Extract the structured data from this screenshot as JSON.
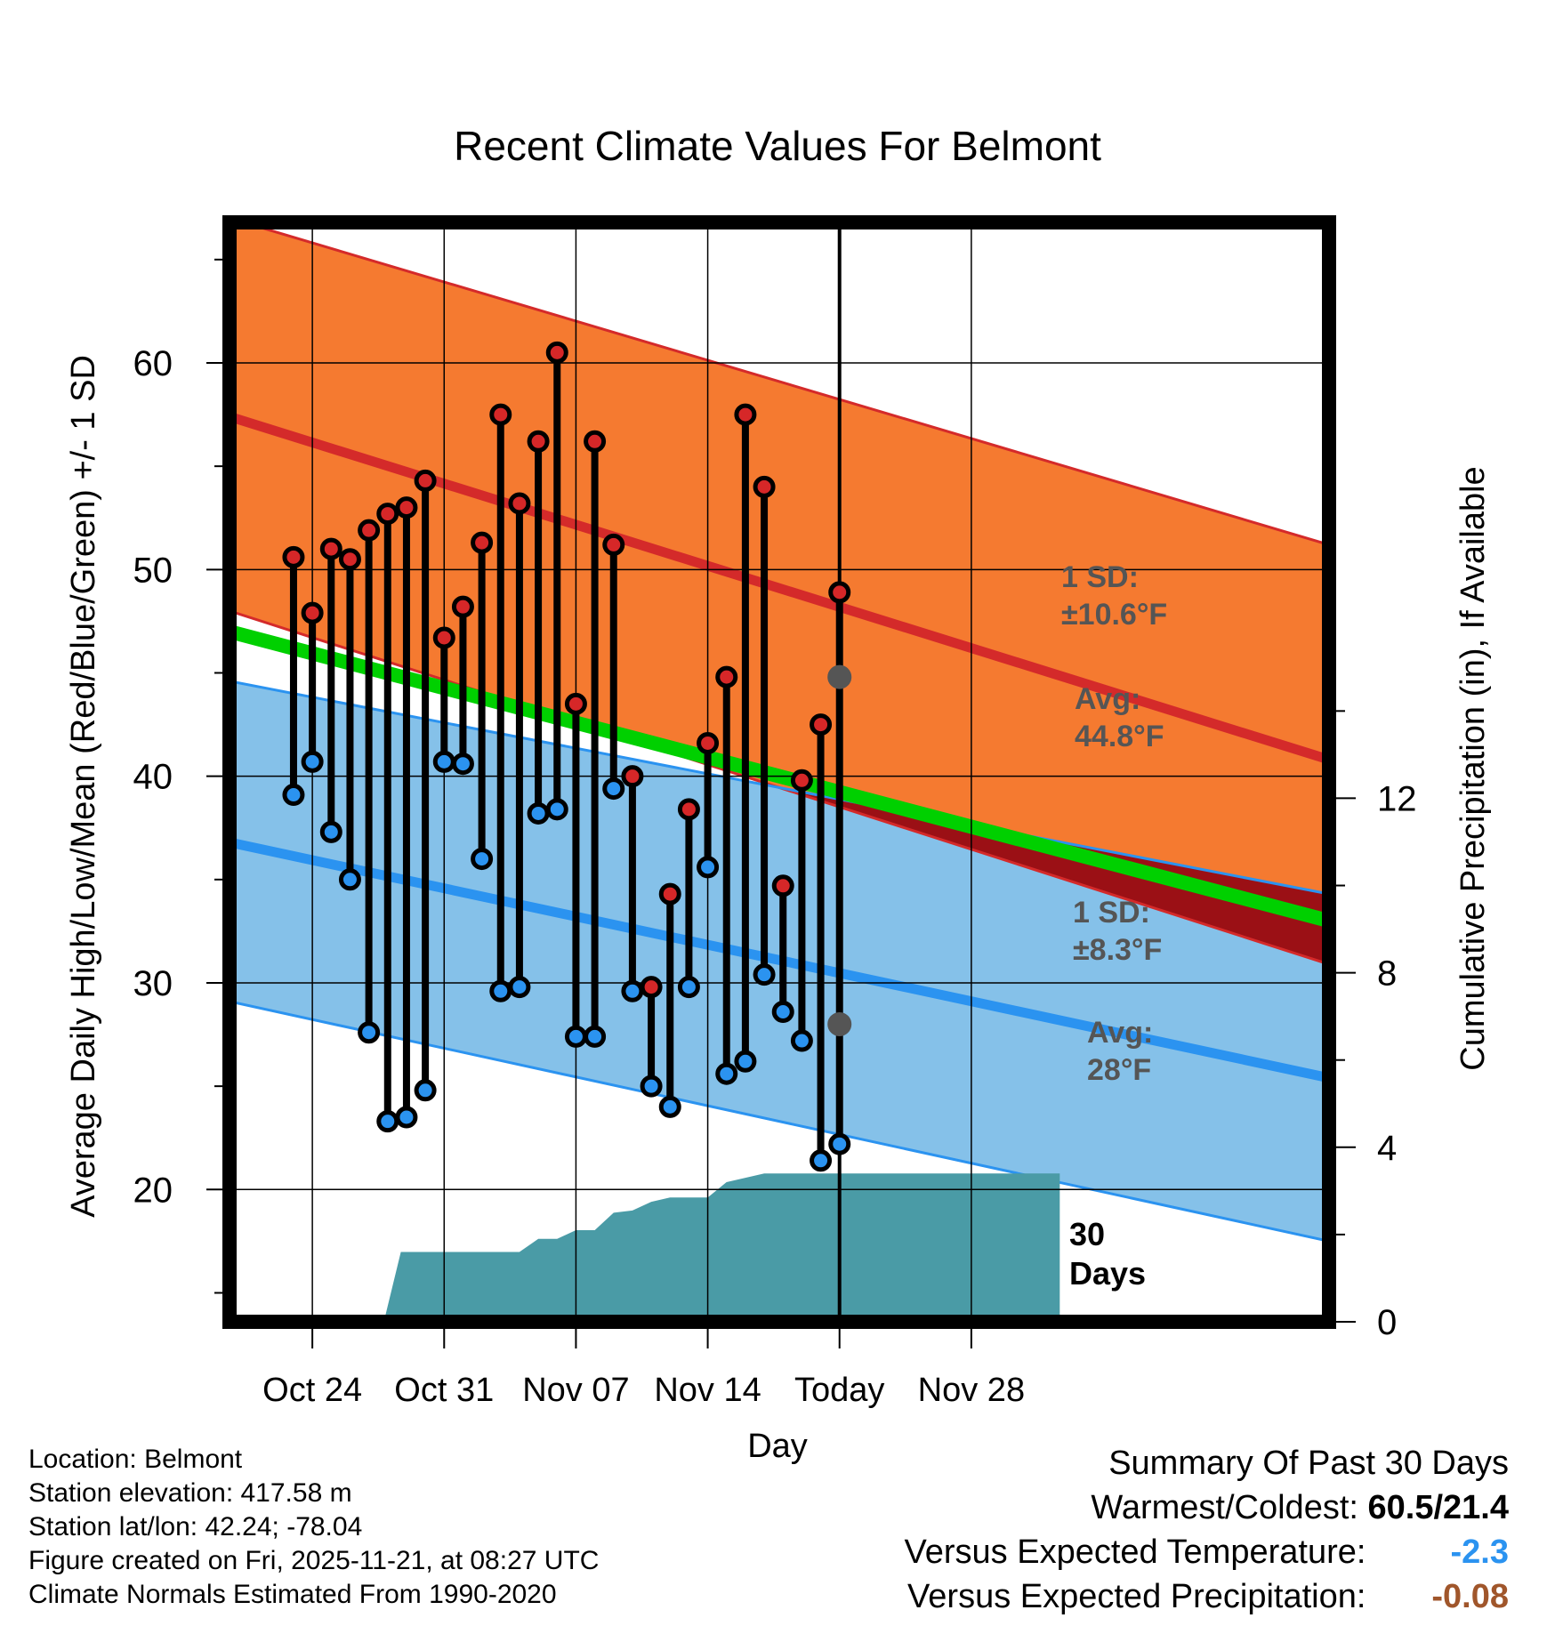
{
  "chart_data": {
    "type": "line",
    "title": "Recent Climate Values For Belmont",
    "xlabel": "Day",
    "ylabel": "Average Daily High/Low/Mean (Red/Blue/Green) +/- 1 SD",
    "y2label": "Cumulative Precipitation (in), If Available",
    "ylim": [
      13.6,
      66.8
    ],
    "y2lim": [
      0,
      25.2
    ],
    "xlim": [
      -3.4,
      55.0
    ],
    "x_ticks": [
      {
        "day": 1,
        "label": "Oct 24"
      },
      {
        "day": 8,
        "label": "Oct 31"
      },
      {
        "day": 15,
        "label": "Nov 07"
      },
      {
        "day": 22,
        "label": "Nov 14"
      },
      {
        "day": 29,
        "label": "Today"
      },
      {
        "day": 36,
        "label": "Nov 28"
      }
    ],
    "y_ticks": [
      20,
      30,
      40,
      50,
      60
    ],
    "y2_ticks": [
      0,
      4,
      8,
      12
    ],
    "today_day": 29,
    "days_label": "30\nDays",
    "normals": {
      "high_avg": {
        "start": 57.4,
        "end": 40.8
      },
      "high_sd_upper": {
        "start": 67.0,
        "end": 51.2
      },
      "high_sd_lower": {
        "start": 48.0,
        "end": 30.9
      },
      "low_avg": {
        "start": 36.8,
        "end": 25.4
      },
      "low_sd_upper": {
        "start": 44.6,
        "end": 34.3
      },
      "low_sd_lower": {
        "start": 29.1,
        "end": 17.5
      },
      "mean_avg": {
        "start": 47.0,
        "end": 33.0
      }
    },
    "annotations": {
      "high_sd": "1 SD:\n±10.6°F",
      "high_avg": "Avg:\n44.8°F",
      "low_sd": "1 SD:\n±8.3°F",
      "low_avg": "Avg:\n28°F",
      "high_today_value": 44.8,
      "low_today_value": 28
    },
    "series": [
      {
        "name": "Daily High",
        "color": "#d62728",
        "values": [
          50.6,
          47.9,
          51.0,
          50.5,
          51.9,
          52.7,
          53.0,
          54.3,
          46.7,
          48.2,
          51.3,
          57.5,
          53.2,
          56.2,
          60.5,
          43.5,
          56.2,
          51.2,
          40.0,
          29.8,
          34.3,
          38.4,
          41.6,
          44.8,
          57.5,
          54.0,
          34.7,
          39.8,
          42.5,
          48.9
        ]
      },
      {
        "name": "Daily Low",
        "color": "#2b93f0",
        "values": [
          39.1,
          40.7,
          37.3,
          35.0,
          27.6,
          23.3,
          23.5,
          24.8,
          40.7,
          40.6,
          36.0,
          29.6,
          29.8,
          38.2,
          38.4,
          27.4,
          27.4,
          39.4,
          29.6,
          25.0,
          24.0,
          29.8,
          35.6,
          25.6,
          26.2,
          30.4,
          28.6,
          27.2,
          21.4,
          22.2
        ]
      }
    ],
    "days": [
      0,
      1,
      2,
      3,
      4,
      5,
      6,
      7,
      8,
      9,
      10,
      11,
      12,
      13,
      14,
      15,
      16,
      17,
      18,
      19,
      20,
      21,
      22,
      23,
      24,
      25,
      26,
      27,
      28,
      29
    ],
    "precipitation_cumulative": {
      "days": [
        4.8,
        5.7,
        6.0,
        12.0,
        13.0,
        14.0,
        15.0,
        16.0,
        17.0,
        18.0,
        19.0,
        20.0,
        21.0,
        22.0,
        23.0,
        24.0,
        25.0,
        26.0,
        27.0,
        28.0,
        29.0,
        30.0,
        40.7
      ],
      "values": [
        0,
        1.6,
        1.6,
        1.6,
        1.9,
        1.9,
        2.1,
        2.1,
        2.5,
        2.55,
        2.75,
        2.85,
        2.85,
        2.85,
        3.2,
        3.3,
        3.4,
        3.4,
        3.4,
        3.4,
        3.4,
        3.4,
        3.4
      ]
    }
  },
  "footer": {
    "location": "Location: Belmont",
    "elevation": "Station elevation: 417.58 m",
    "latlon": "Station lat/lon: 42.24; -78.04",
    "created": "Figure created on Fri, 2025-11-21, at 08:27 UTC",
    "normals": "Climate Normals Estimated From 1990-2020"
  },
  "summary": {
    "title": "Summary Of Past 30 Days",
    "warmest_label": "Warmest/Coldest:",
    "warmest_value": "60.5/21.4",
    "temp_label": "Versus Expected Temperature:",
    "temp_value": "-2.3",
    "precip_label": "Versus Expected Precipitation:",
    "precip_value": "-0.08"
  },
  "colors": {
    "high_band": "#f57a30",
    "high_line": "#d42a2a",
    "low_band": "#85c1e9",
    "low_line": "#2b93f0",
    "mean_line": "#00d000",
    "overlap": "#9b1015",
    "precip": "#4a9ba6",
    "annotation": "#555555"
  }
}
